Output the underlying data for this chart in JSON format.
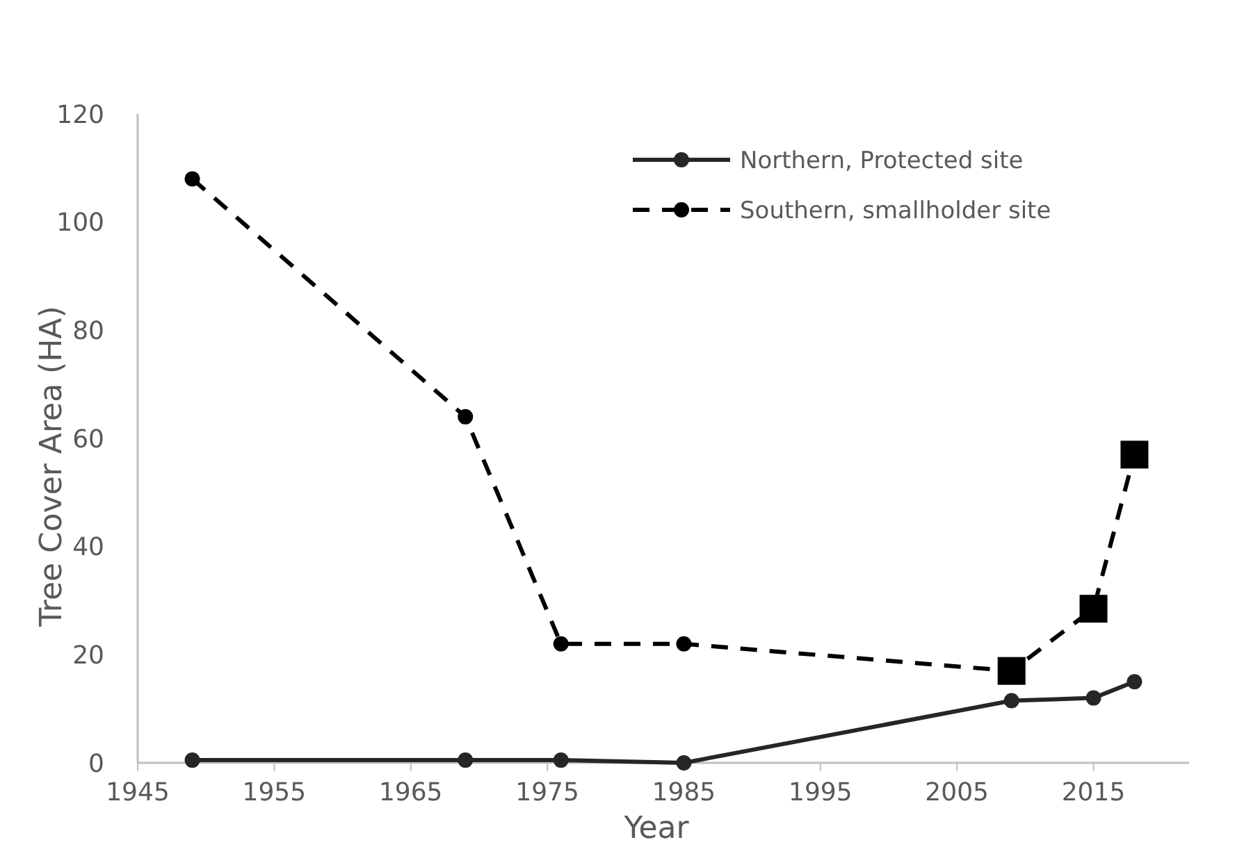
{
  "chart_data": {
    "type": "line",
    "xlabel": "Year",
    "ylabel": "Tree Cover Area (HA)",
    "xlim": [
      1945,
      2022
    ],
    "xticks": [
      1945,
      1955,
      1965,
      1975,
      1985,
      1995,
      2005,
      2015
    ],
    "ylim": [
      0,
      120
    ],
    "yticks": [
      0,
      20,
      40,
      60,
      80,
      100,
      120
    ],
    "grid": false,
    "legend": "top right",
    "series": [
      {
        "name": "Northern, Protected site",
        "color": "#262626",
        "line_style": "solid",
        "marker": "circle",
        "x": [
          1949,
          1969,
          1976,
          1985,
          2009,
          2015,
          2018
        ],
        "values": [
          0.5,
          0.5,
          0.5,
          0,
          11.5,
          12,
          15
        ]
      },
      {
        "name": "Southern, smallholder site",
        "color": "#000000",
        "line_style": "dashed",
        "marker": "circle",
        "x": [
          1949,
          1969,
          1976,
          1985,
          2009,
          2015,
          2018
        ],
        "values": [
          108,
          64,
          22,
          22,
          17,
          28.5,
          57
        ]
      },
      {
        "type": "scatter",
        "color": "#000000",
        "marker": "square",
        "x": [
          2009,
          2015,
          2018
        ],
        "values": [
          17,
          28.5,
          57
        ]
      }
    ]
  }
}
